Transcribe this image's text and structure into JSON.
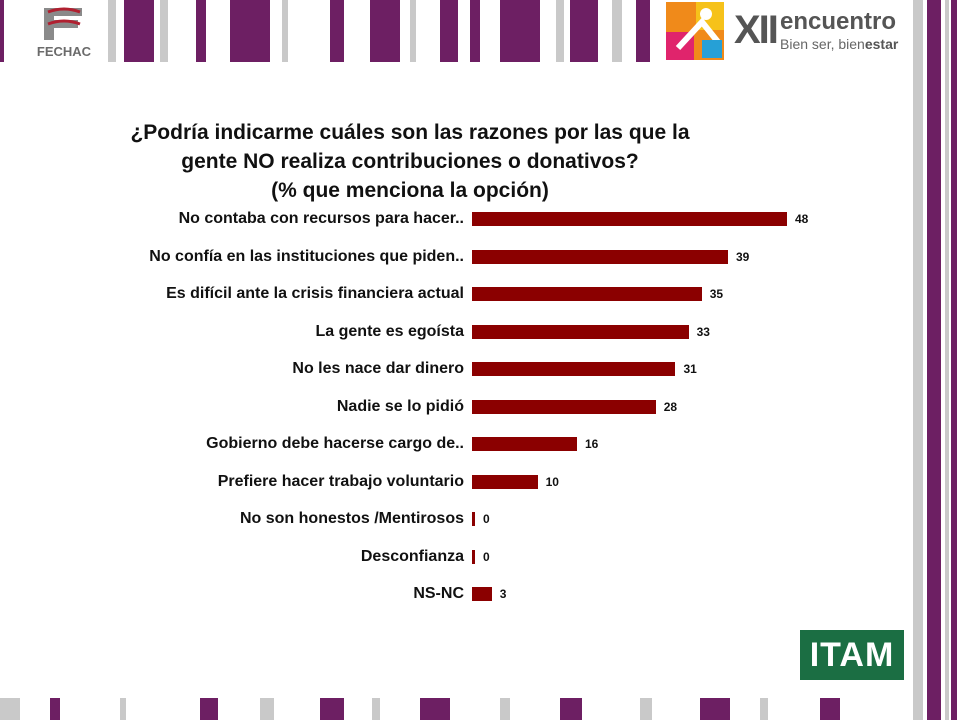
{
  "header": {
    "left_logo_text": "FECHAC",
    "right_logo": {
      "roman": "XII",
      "word": "encuentro",
      "tagline_a": "Bien ser, bien",
      "tagline_b": "estar"
    }
  },
  "footer": {
    "logo_text": "ITAM"
  },
  "colors": {
    "bar": "#8b0000",
    "stripe_purple": "#6d1f63",
    "stripe_gray": "#c9c9c9",
    "itam_green": "#1b6e43"
  },
  "chart_data": {
    "type": "bar",
    "orientation": "horizontal",
    "title": "¿Podría indicarme cuáles son las razones por las que la\ngente NO realiza contribuciones o donativos?\n(% que menciona la opción)",
    "categories": [
      "No contaba con recursos para hacer..",
      "No confía en las instituciones que piden..",
      "Es difícil ante la crisis financiera actual",
      "La gente es egoísta",
      "No les nace dar dinero",
      "Nadie se lo pidió",
      "Gobierno debe hacerse cargo de..",
      "Prefiere hacer trabajo voluntario",
      "No son honestos /Mentirosos",
      "Desconfianza",
      "NS-NC"
    ],
    "values": [
      48,
      39,
      35,
      33,
      31,
      28,
      16,
      10,
      0,
      0,
      3
    ],
    "data_labels": [
      "48",
      "39",
      "35",
      "33",
      "31",
      "28",
      "16",
      "10",
      "0",
      "0",
      "3"
    ],
    "xlim": [
      0,
      50
    ],
    "grid": false,
    "legend": "none"
  }
}
